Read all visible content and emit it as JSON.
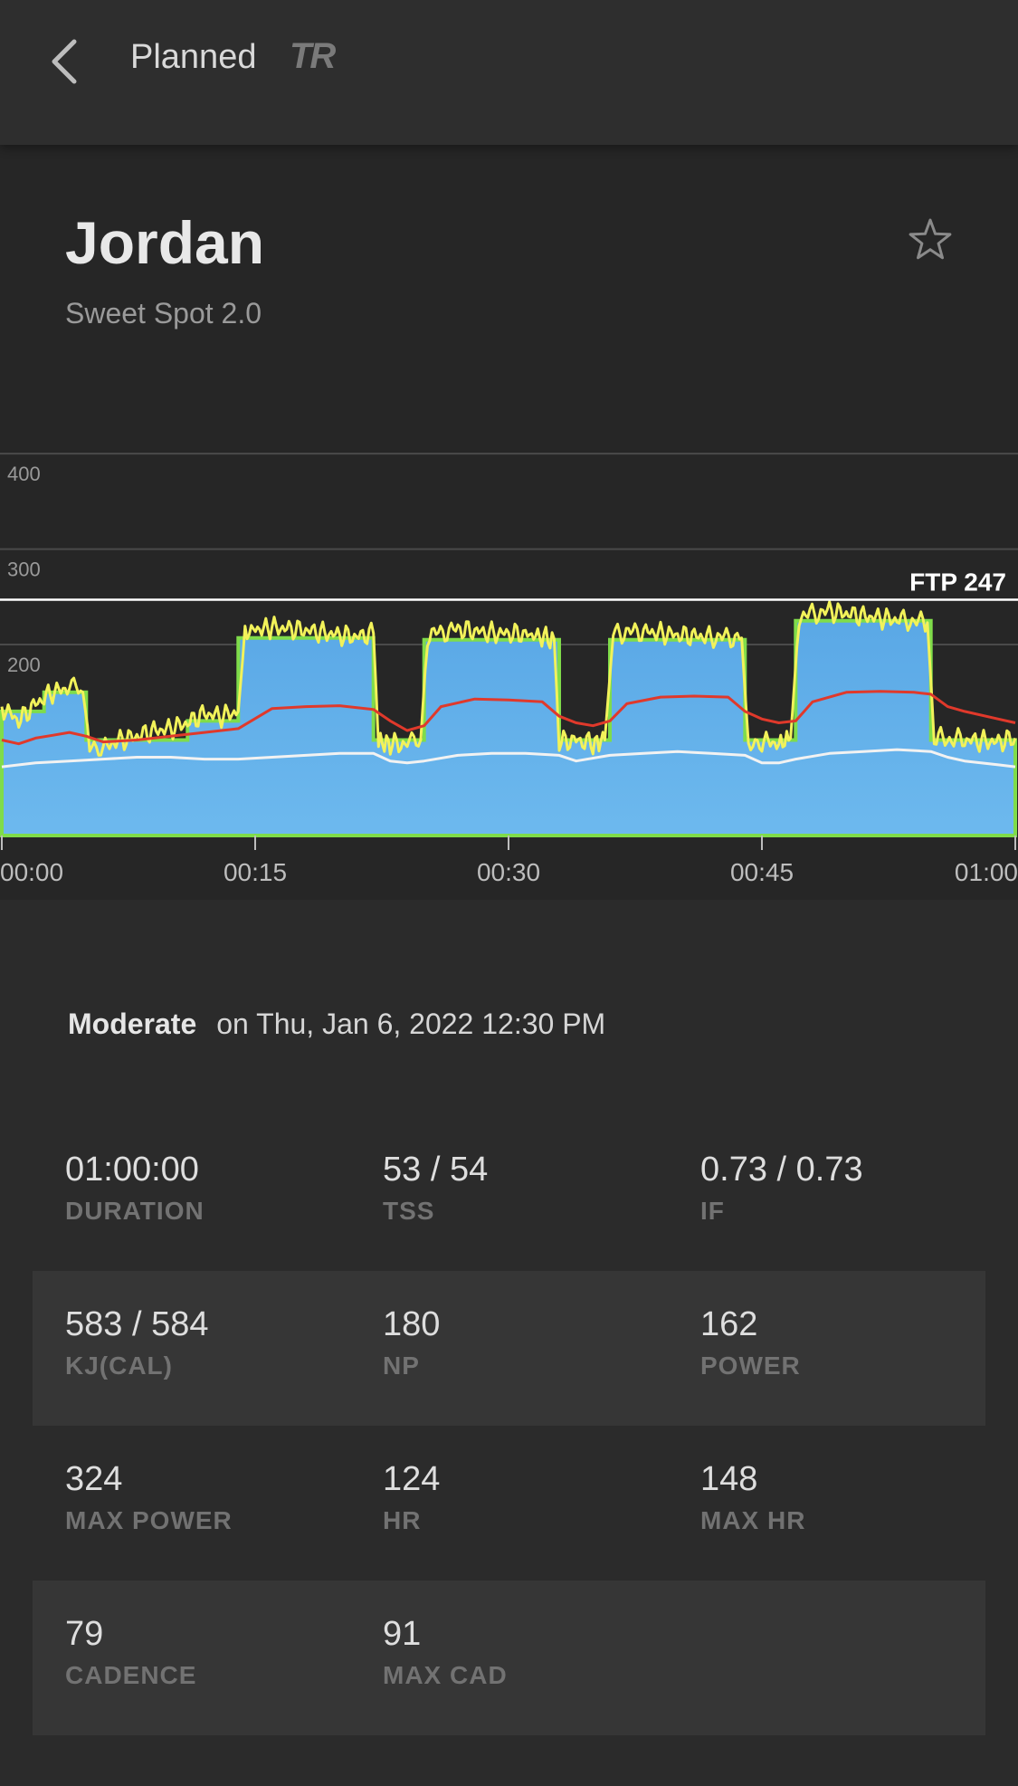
{
  "header": {
    "title": "Planned",
    "logo_text": "TR",
    "back_icon": "chevron-left-icon"
  },
  "workout": {
    "name": "Jordan",
    "subtitle": "Sweet Spot 2.0",
    "favorite_icon": "star-outline-icon"
  },
  "effort": {
    "level": "Moderate",
    "date_text": "on Thu, Jan 6, 2022 12:30 PM"
  },
  "chart_data": {
    "type": "area",
    "x_unit": "minutes",
    "xlim": [
      0,
      60
    ],
    "ylim": [
      0,
      420
    ],
    "y_ticks": [
      {
        "value": 200,
        "label": "200"
      },
      {
        "value": 300,
        "label": "300"
      },
      {
        "value": 400,
        "label": "400"
      }
    ],
    "x_ticks": [
      {
        "value": 0,
        "label": "00:00"
      },
      {
        "value": 15,
        "label": "00:15"
      },
      {
        "value": 30,
        "label": "00:30"
      },
      {
        "value": 45,
        "label": "00:45"
      },
      {
        "value": 60,
        "label": "01:00"
      }
    ],
    "ftp": {
      "value": 247,
      "label": "FTP 247"
    },
    "colors": {
      "target": "#4fa3e3",
      "target_edge": "#7fdc4a",
      "power": "#f2f25a",
      "hr": "#e0392b",
      "cadence": "#f2f2f2",
      "grid": "#4a4a4a",
      "ftp_line": "#ffffff"
    },
    "series": [
      {
        "role": "target",
        "points": [
          [
            0,
            130
          ],
          [
            2.5,
            130
          ],
          [
            2.5,
            150
          ],
          [
            5,
            150
          ],
          [
            5,
            100
          ],
          [
            11,
            100
          ],
          [
            11,
            120
          ],
          [
            14,
            120
          ],
          [
            14,
            207
          ],
          [
            22,
            207
          ],
          [
            22,
            100
          ],
          [
            25,
            100
          ],
          [
            25,
            205
          ],
          [
            33,
            205
          ],
          [
            33,
            100
          ],
          [
            36,
            100
          ],
          [
            36,
            205
          ],
          [
            44,
            205
          ],
          [
            44,
            100
          ],
          [
            47,
            100
          ],
          [
            47,
            225
          ],
          [
            55,
            225
          ],
          [
            55,
            100
          ],
          [
            60,
            100
          ]
        ]
      },
      {
        "role": "power",
        "points": [
          [
            0,
            135
          ],
          [
            1,
            120
          ],
          [
            2,
            138
          ],
          [
            3,
            150
          ],
          [
            4,
            155
          ],
          [
            4.8,
            150
          ],
          [
            5.2,
            98
          ],
          [
            6,
            92
          ],
          [
            7,
            100
          ],
          [
            8,
            104
          ],
          [
            9,
            110
          ],
          [
            10,
            112
          ],
          [
            11,
            118
          ],
          [
            12,
            128
          ],
          [
            13,
            125
          ],
          [
            14,
            130
          ],
          [
            14.4,
            214
          ],
          [
            16,
            218
          ],
          [
            18,
            215
          ],
          [
            20,
            210
          ],
          [
            21,
            208
          ],
          [
            22,
            212
          ],
          [
            22.3,
            98
          ],
          [
            23,
            96
          ],
          [
            24,
            95
          ],
          [
            24.8,
            100
          ],
          [
            25.2,
            210
          ],
          [
            27,
            216
          ],
          [
            29,
            212
          ],
          [
            31,
            211
          ],
          [
            32.7,
            206
          ],
          [
            33,
            98
          ],
          [
            34,
            100
          ],
          [
            35,
            96
          ],
          [
            35.7,
            100
          ],
          [
            36.2,
            212
          ],
          [
            38,
            214
          ],
          [
            40,
            210
          ],
          [
            42,
            208
          ],
          [
            43.8,
            207
          ],
          [
            44.2,
            95
          ],
          [
            45,
            100
          ],
          [
            46,
            96
          ],
          [
            46.7,
            102
          ],
          [
            47.2,
            230
          ],
          [
            49,
            235
          ],
          [
            51,
            230
          ],
          [
            53,
            226
          ],
          [
            54.8,
            223
          ],
          [
            55.2,
            102
          ],
          [
            57,
            100
          ],
          [
            59,
            98
          ],
          [
            60,
            102
          ]
        ]
      },
      {
        "role": "heart_rate",
        "points": [
          [
            0,
            100
          ],
          [
            1,
            96
          ],
          [
            2,
            102
          ],
          [
            3,
            105
          ],
          [
            4,
            108
          ],
          [
            5,
            104
          ],
          [
            6,
            98
          ],
          [
            8,
            100
          ],
          [
            10,
            104
          ],
          [
            12,
            108
          ],
          [
            14,
            112
          ],
          [
            16,
            133
          ],
          [
            18,
            135
          ],
          [
            20,
            136
          ],
          [
            22,
            132
          ],
          [
            23,
            120
          ],
          [
            24,
            110
          ],
          [
            25,
            115
          ],
          [
            26,
            135
          ],
          [
            28,
            143
          ],
          [
            30,
            142
          ],
          [
            32,
            140
          ],
          [
            33,
            125
          ],
          [
            34,
            118
          ],
          [
            35,
            115
          ],
          [
            36,
            120
          ],
          [
            37,
            138
          ],
          [
            39,
            145
          ],
          [
            41,
            146
          ],
          [
            43,
            145
          ],
          [
            44,
            130
          ],
          [
            45,
            122
          ],
          [
            46,
            118
          ],
          [
            47,
            120
          ],
          [
            48,
            140
          ],
          [
            50,
            150
          ],
          [
            52,
            151
          ],
          [
            54,
            150
          ],
          [
            55,
            148
          ],
          [
            56,
            135
          ],
          [
            57,
            130
          ],
          [
            59,
            122
          ],
          [
            60,
            118
          ]
        ]
      },
      {
        "role": "cadence",
        "points": [
          [
            0,
            72
          ],
          [
            2,
            76
          ],
          [
            4,
            78
          ],
          [
            6,
            80
          ],
          [
            8,
            82
          ],
          [
            10,
            82
          ],
          [
            12,
            80
          ],
          [
            14,
            80
          ],
          [
            16,
            82
          ],
          [
            18,
            84
          ],
          [
            20,
            86
          ],
          [
            22,
            86
          ],
          [
            23,
            78
          ],
          [
            24,
            76
          ],
          [
            25,
            78
          ],
          [
            27,
            84
          ],
          [
            29,
            86
          ],
          [
            31,
            86
          ],
          [
            33,
            84
          ],
          [
            34,
            78
          ],
          [
            36,
            84
          ],
          [
            38,
            86
          ],
          [
            40,
            88
          ],
          [
            42,
            86
          ],
          [
            44,
            84
          ],
          [
            45,
            76
          ],
          [
            46,
            76
          ],
          [
            47,
            80
          ],
          [
            49,
            86
          ],
          [
            51,
            88
          ],
          [
            53,
            90
          ],
          [
            55,
            88
          ],
          [
            56,
            82
          ],
          [
            57,
            78
          ],
          [
            59,
            74
          ],
          [
            60,
            72
          ]
        ]
      }
    ]
  },
  "stats": [
    [
      {
        "value": "01:00:00",
        "label": "DURATION"
      },
      {
        "value": "53 / 54",
        "label": "TSS"
      },
      {
        "value": "0.73 / 0.73",
        "label": "IF"
      }
    ],
    [
      {
        "value": "583 / 584",
        "label": "KJ(CAL)"
      },
      {
        "value": "180",
        "label": "NP"
      },
      {
        "value": "162",
        "label": "POWER"
      }
    ],
    [
      {
        "value": "324",
        "label": "MAX POWER"
      },
      {
        "value": "124",
        "label": "HR"
      },
      {
        "value": "148",
        "label": "MAX HR"
      }
    ],
    [
      {
        "value": "79",
        "label": "CADENCE"
      },
      {
        "value": "91",
        "label": "MAX CAD"
      }
    ]
  ]
}
